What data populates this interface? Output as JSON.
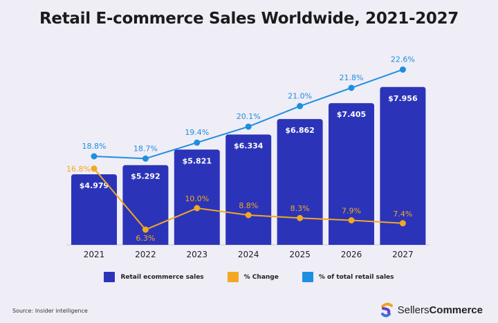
{
  "title": "Retail E-commerce Sales Worldwide, 2021-2027",
  "source": "Source: Insider intelligence",
  "brand": {
    "name_light": "Sellers",
    "name_bold": "Commerce",
    "logo_icon": "sellerscommerce-logo"
  },
  "colors": {
    "bar": "#2b34b8",
    "change": "#f2a822",
    "share": "#1d8fe0",
    "background": "#efedf6"
  },
  "legend": [
    {
      "label": "Retail ecommerce sales",
      "color": "#2b34b8"
    },
    {
      "label": "% Change",
      "color": "#f2a822"
    },
    {
      "label": "% of total retail sales",
      "color": "#1d8fe0"
    }
  ],
  "chart_data": {
    "type": "bar",
    "categories": [
      "2021",
      "2022",
      "2023",
      "2024",
      "2025",
      "2026",
      "2027"
    ],
    "series": [
      {
        "name": "Retail ecommerce sales",
        "type": "bar",
        "values": [
          4.979,
          5.292,
          5.821,
          6.334,
          6.862,
          7.405,
          7.956
        ],
        "labels": [
          "$4.979",
          "$5.292",
          "$5.821",
          "$6.334",
          "$6.862",
          "$7.405",
          "$7.956"
        ]
      },
      {
        "name": "% Change",
        "type": "line",
        "values": [
          16.8,
          6.3,
          10.0,
          8.8,
          8.3,
          7.9,
          7.4
        ],
        "labels": [
          "16.8%",
          "6.3%",
          "10.0%",
          "8.8%",
          "8.3%",
          "7.9%",
          "7.4%"
        ]
      },
      {
        "name": "% of total retail sales",
        "type": "line",
        "values": [
          18.8,
          18.7,
          19.4,
          20.1,
          21.0,
          21.8,
          22.6
        ],
        "labels": [
          "18.8%",
          "18.7%",
          "19.4%",
          "20.1%",
          "21.0%",
          "21.8%",
          "22.6%"
        ]
      }
    ],
    "grid": false
  }
}
